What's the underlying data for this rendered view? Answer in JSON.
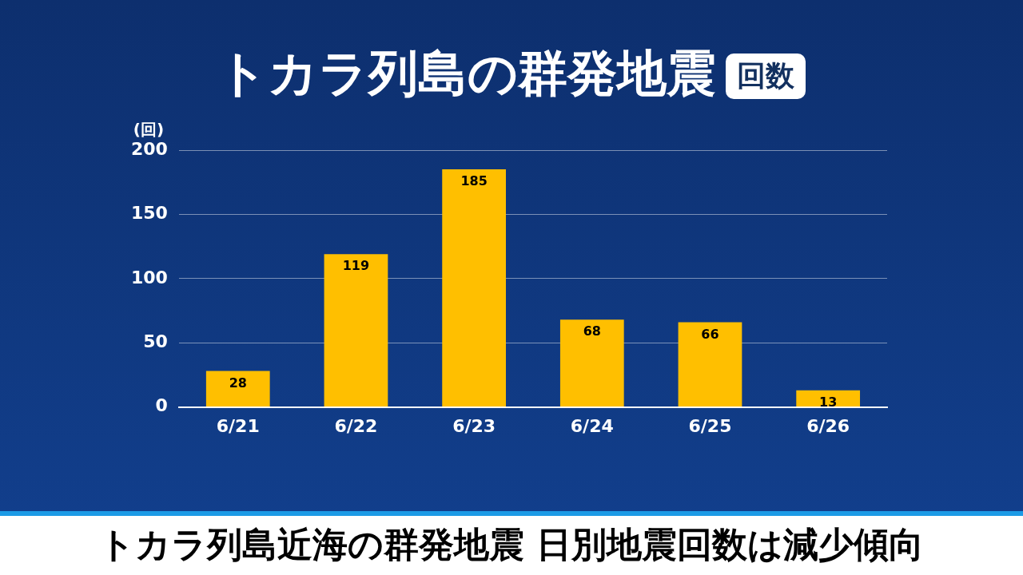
{
  "chart_data": {
    "type": "bar",
    "title": "トカラ列島の群発地震",
    "subtitle": "回数",
    "ylabel": "(回)",
    "categories": [
      "6/21",
      "6/22",
      "6/23",
      "6/24",
      "6/25",
      "6/26"
    ],
    "values": [
      28,
      119,
      185,
      68,
      66,
      13
    ],
    "color": "#ffbf00",
    "ylim": [
      0,
      200
    ],
    "yticks": [
      0,
      50,
      100,
      150,
      200
    ],
    "grid": "y",
    "data_labels": true,
    "legend": false,
    "annotations": [
      "トカラ列島近海の群発地震 日別地震回数は減少傾向"
    ]
  }
}
